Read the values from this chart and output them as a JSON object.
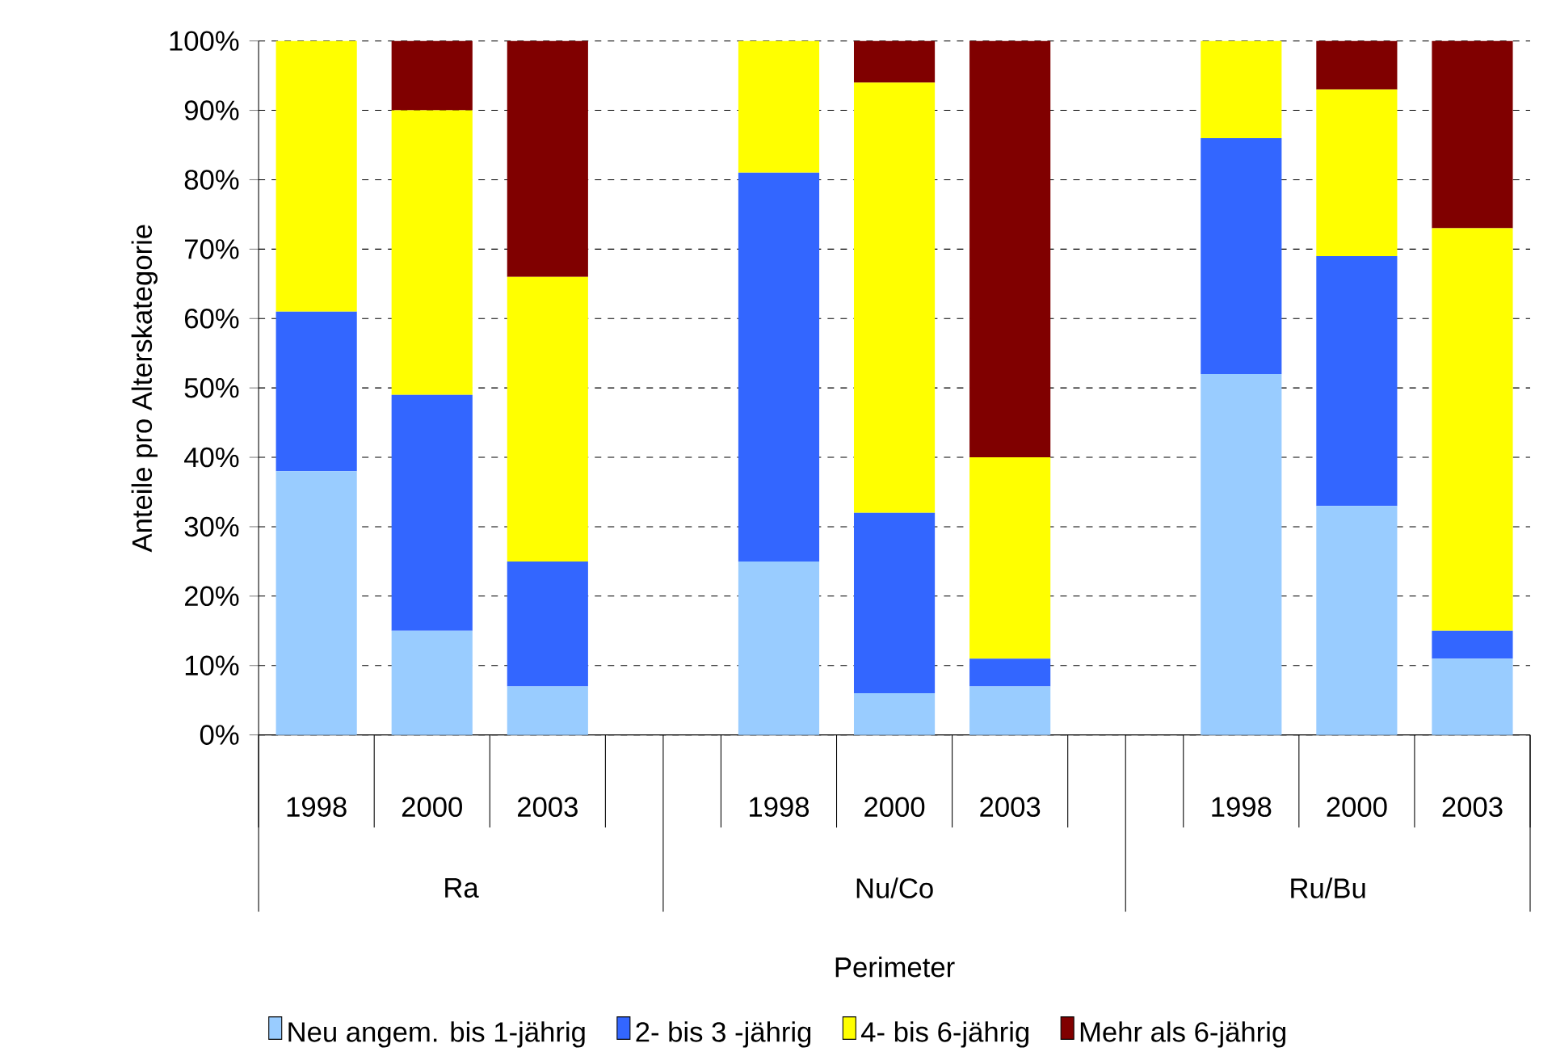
{
  "chart_data": {
    "type": "bar",
    "stacked": true,
    "xlabel": "Perimeter",
    "ylabel": "Anteile pro Alterskategorie",
    "categories": [
      "1998",
      "2000",
      "2003",
      null,
      "1998",
      "2000",
      "2003",
      null,
      "1998",
      "2000",
      "2003"
    ],
    "annotations": [
      "Ra",
      "Nu/Co",
      "Ru/Bu"
    ],
    "series": [
      {
        "name": "Neu angem. bis 1-jährig",
        "color": "#99ccff",
        "values": [
          38,
          15,
          7,
          null,
          25,
          6,
          7,
          null,
          52,
          33,
          11
        ]
      },
      {
        "name": "2- bis 3 -jährig",
        "color": "#3366ff",
        "values": [
          23,
          34,
          18,
          null,
          56,
          26,
          4,
          null,
          34,
          36,
          4
        ]
      },
      {
        "name": "4- bis 6-jährig",
        "color": "#ffff00",
        "values": [
          39,
          41,
          41,
          null,
          19,
          62,
          29,
          null,
          14,
          24,
          58
        ]
      },
      {
        "name": "Mehr als 6-jährig",
        "color": "#800000",
        "values": [
          0,
          10,
          34,
          null,
          0,
          6,
          60,
          null,
          0,
          7,
          27
        ]
      }
    ],
    "ylim": [
      0,
      100
    ],
    "yticks": [
      {
        "value": 0,
        "label": "0%"
      },
      {
        "value": 10,
        "label": "10%"
      },
      {
        "value": 20,
        "label": "20%"
      },
      {
        "value": 30,
        "label": "30%"
      },
      {
        "value": 40,
        "label": "40%"
      },
      {
        "value": 50,
        "label": "50%"
      },
      {
        "value": 60,
        "label": "60%"
      },
      {
        "value": 70,
        "label": "70%"
      },
      {
        "value": 80,
        "label": "80%"
      },
      {
        "value": 90,
        "label": "90%"
      },
      {
        "value": 100,
        "label": "100%"
      }
    ],
    "grid": "y",
    "legend": "bottom"
  }
}
